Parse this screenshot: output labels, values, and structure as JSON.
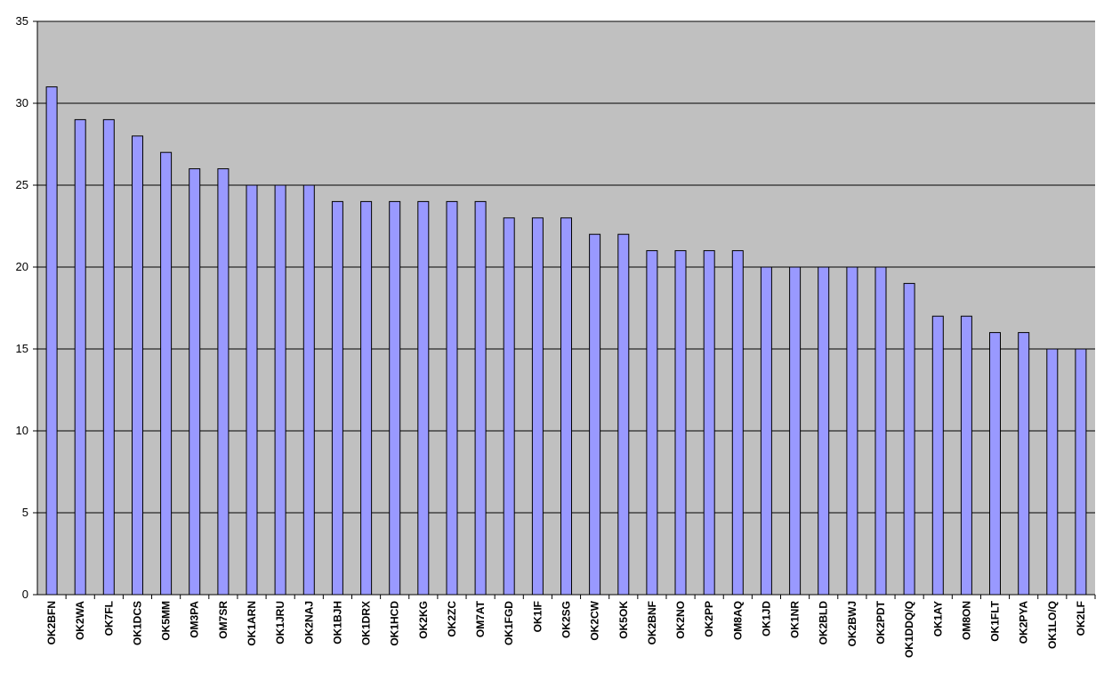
{
  "chart_data": {
    "type": "bar",
    "title": "",
    "xlabel": "",
    "ylabel": "",
    "ylim": [
      0,
      35
    ],
    "yticks": [
      0,
      5,
      10,
      15,
      20,
      25,
      30,
      35
    ],
    "grid": true,
    "legend": "none",
    "colors": {
      "bar_fill": "#9999ff",
      "bar_stroke": "#000000",
      "plot_background": "#c0c0c0",
      "gridline": "#000000"
    },
    "categories": [
      "OK2BFN",
      "OK2WA",
      "OK7FL",
      "OK1DCS",
      "OK5MM",
      "OM3PA",
      "OM7SR",
      "OK1ARN",
      "OK1JRU",
      "OK2NAJ",
      "OK1BJH",
      "OK1DRX",
      "OK1HCD",
      "OK2KG",
      "OK2ZC",
      "OM7AT",
      "OK1FGD",
      "OK1IF",
      "OK2SG",
      "OK2CW",
      "OK5OK",
      "OK2BNF",
      "OK2NO",
      "OK2PP",
      "OM8AQ",
      "OK1JD",
      "OK1NR",
      "OK2BLD",
      "OK2BWJ",
      "OK2PDT",
      "OK1DDQ/Q",
      "OK1AY",
      "OM8ON",
      "OK1FLT",
      "OK2PYA",
      "OK1LO/Q",
      "OK2LF"
    ],
    "values": [
      31,
      29,
      29,
      28,
      27,
      26,
      26,
      25,
      25,
      25,
      24,
      24,
      24,
      24,
      24,
      24,
      23,
      23,
      23,
      22,
      22,
      21,
      21,
      21,
      21,
      20,
      20,
      20,
      20,
      20,
      19,
      17,
      17,
      16,
      16,
      15,
      15
    ]
  }
}
